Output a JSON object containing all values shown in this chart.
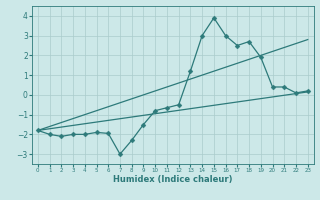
{
  "title": "",
  "xlabel": "Humidex (Indice chaleur)",
  "ylabel": "",
  "background_color": "#cce8e8",
  "line_color": "#2d7a7a",
  "grid_color": "#aacccc",
  "xlim": [
    -0.5,
    23.5
  ],
  "ylim": [
    -3.5,
    4.5
  ],
  "yticks": [
    -3,
    -2,
    -1,
    0,
    1,
    2,
    3,
    4
  ],
  "xticks": [
    0,
    1,
    2,
    3,
    4,
    5,
    6,
    7,
    8,
    9,
    10,
    11,
    12,
    13,
    14,
    15,
    16,
    17,
    18,
    19,
    20,
    21,
    22,
    23
  ],
  "series1_x": [
    0,
    1,
    2,
    3,
    4,
    5,
    6,
    7,
    8,
    9,
    10,
    11,
    12,
    13,
    14,
    15,
    16,
    17,
    18,
    19,
    20,
    21,
    22,
    23
  ],
  "series1_y": [
    -1.8,
    -2.0,
    -2.1,
    -2.0,
    -2.0,
    -1.9,
    -1.95,
    -3.0,
    -2.3,
    -1.5,
    -0.8,
    -0.65,
    -0.5,
    1.2,
    3.0,
    3.9,
    3.0,
    2.5,
    2.7,
    1.9,
    0.4,
    0.4,
    0.1,
    0.2
  ],
  "series2_x": [
    0,
    23
  ],
  "series2_y": [
    -1.8,
    0.15
  ],
  "series3_x": [
    0,
    23
  ],
  "series3_y": [
    -1.8,
    2.8
  ],
  "marker_size": 2.5,
  "linewidth": 0.9
}
